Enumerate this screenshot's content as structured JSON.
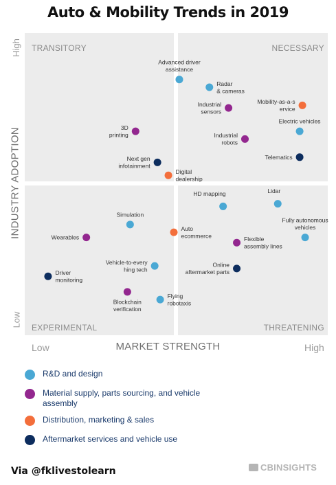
{
  "chart_data": {
    "type": "scatter",
    "title": "Auto & Mobility Trends in 2019",
    "xlabel": "MARKET STRENGTH",
    "ylabel": "INDUSTRY ADOPTION",
    "x_ticks": {
      "low": "Low",
      "high": "High"
    },
    "y_ticks": {
      "low": "Low",
      "high": "High"
    },
    "xlim": [
      0,
      100
    ],
    "ylim": [
      0,
      100
    ],
    "quadrants": {
      "top_left": "TRANSITORY",
      "top_right": "NECESSARY",
      "bottom_left": "EXPERIMENTAL",
      "bottom_right": "THREATENING"
    },
    "categories": [
      {
        "key": "rd",
        "label": "R&D and design",
        "color": "#4aa8d4"
      },
      {
        "key": "supply",
        "label": "Material supply, parts sourcing, and vehicle assembly",
        "color": "#93278f"
      },
      {
        "key": "distribution",
        "label": "Distribution, marketing & sales",
        "color": "#f36e3b"
      },
      {
        "key": "aftermarket",
        "label": "Aftermarket services and vehicle use",
        "color": "#0d2d5e"
      }
    ],
    "points": [
      {
        "label": "Advanced driver\nassistance",
        "x": 51,
        "y": 90,
        "cat": "rd",
        "pos": "above"
      },
      {
        "label": "Radar\n& cameras",
        "x": 62,
        "y": 87,
        "cat": "rd",
        "pos": "right"
      },
      {
        "label": "Industrial\nsensors",
        "x": 69,
        "y": 79,
        "cat": "supply",
        "pos": "left"
      },
      {
        "label": "Mobility-as-a-s\nervice",
        "x": 96,
        "y": 80,
        "cat": "distribution",
        "pos": "left"
      },
      {
        "label": "Electric vehicles",
        "x": 95,
        "y": 70,
        "cat": "rd",
        "pos": "above"
      },
      {
        "label": "Industrial\nrobots",
        "x": 75,
        "y": 67,
        "cat": "supply",
        "pos": "left"
      },
      {
        "label": "Telematics",
        "x": 95,
        "y": 60,
        "cat": "aftermarket",
        "pos": "left"
      },
      {
        "label": "3D\nprinting",
        "x": 35,
        "y": 70,
        "cat": "supply",
        "pos": "left"
      },
      {
        "label": "Next gen\ninfotainment",
        "x": 43,
        "y": 58,
        "cat": "aftermarket",
        "pos": "left"
      },
      {
        "label": "Digital\ndealership",
        "x": 47,
        "y": 53,
        "cat": "distribution",
        "pos": "right"
      },
      {
        "label": "HD mapping",
        "x": 67,
        "y": 41,
        "cat": "rd",
        "pos": "above-left"
      },
      {
        "label": "Lidar",
        "x": 87,
        "y": 42,
        "cat": "rd",
        "pos": "above-left"
      },
      {
        "label": "Fully autonomous\nvehicles",
        "x": 97,
        "y": 29,
        "cat": "rd",
        "pos": "above"
      },
      {
        "label": "Simulation",
        "x": 33,
        "y": 34,
        "cat": "rd",
        "pos": "above"
      },
      {
        "label": "Auto\necommerce",
        "x": 49,
        "y": 31,
        "cat": "distribution",
        "pos": "right"
      },
      {
        "label": "Flexible\nassembly lines",
        "x": 72,
        "y": 27,
        "cat": "supply",
        "pos": "right"
      },
      {
        "label": "Wearables",
        "x": 17,
        "y": 29,
        "cat": "supply",
        "pos": "left"
      },
      {
        "label": "Vehicle-to-every\nhing tech",
        "x": 42,
        "y": 18,
        "cat": "rd",
        "pos": "left"
      },
      {
        "label": "Online\naftermarket parts",
        "x": 72,
        "y": 17,
        "cat": "aftermarket",
        "pos": "left"
      },
      {
        "label": "Driver\nmonitoring",
        "x": 3,
        "y": 14,
        "cat": "aftermarket",
        "pos": "right"
      },
      {
        "label": "Blockchain\nverification",
        "x": 32,
        "y": 8,
        "cat": "supply",
        "pos": "below"
      },
      {
        "label": "Flying\nrobotaxis",
        "x": 44,
        "y": 5,
        "cat": "rd",
        "pos": "right"
      }
    ]
  },
  "footer": {
    "via": "Via @fklivestolearn",
    "brand": "CBINSIGHTS"
  }
}
